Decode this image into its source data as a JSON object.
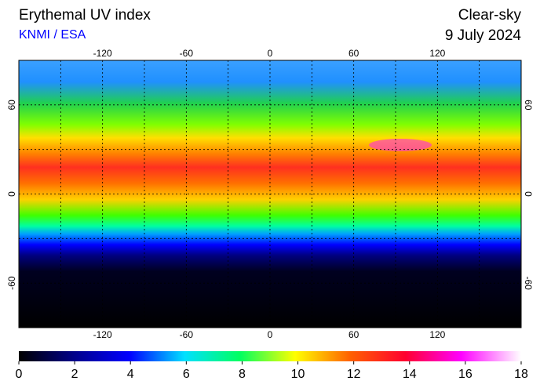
{
  "header": {
    "title": "Erythemal UV index",
    "source": "KNMI / ESA",
    "condition": "Clear-sky",
    "date": "9 July 2024"
  },
  "map": {
    "lonlim": [
      -180,
      180
    ],
    "latlim": [
      -90,
      90
    ],
    "lon_ticks": [
      -120,
      -60,
      0,
      60,
      120
    ],
    "lat_ticks": [
      60,
      0,
      -60
    ],
    "grid_lon": [
      -150,
      -120,
      -90,
      -60,
      -30,
      0,
      30,
      60,
      90,
      120,
      150
    ],
    "grid_lat": [
      60,
      30,
      0,
      -30,
      -60
    ]
  },
  "colorbar": {
    "lim": [
      0,
      18
    ],
    "ticks": [
      0,
      2,
      4,
      6,
      8,
      10,
      12,
      14,
      16,
      18
    ]
  }
}
